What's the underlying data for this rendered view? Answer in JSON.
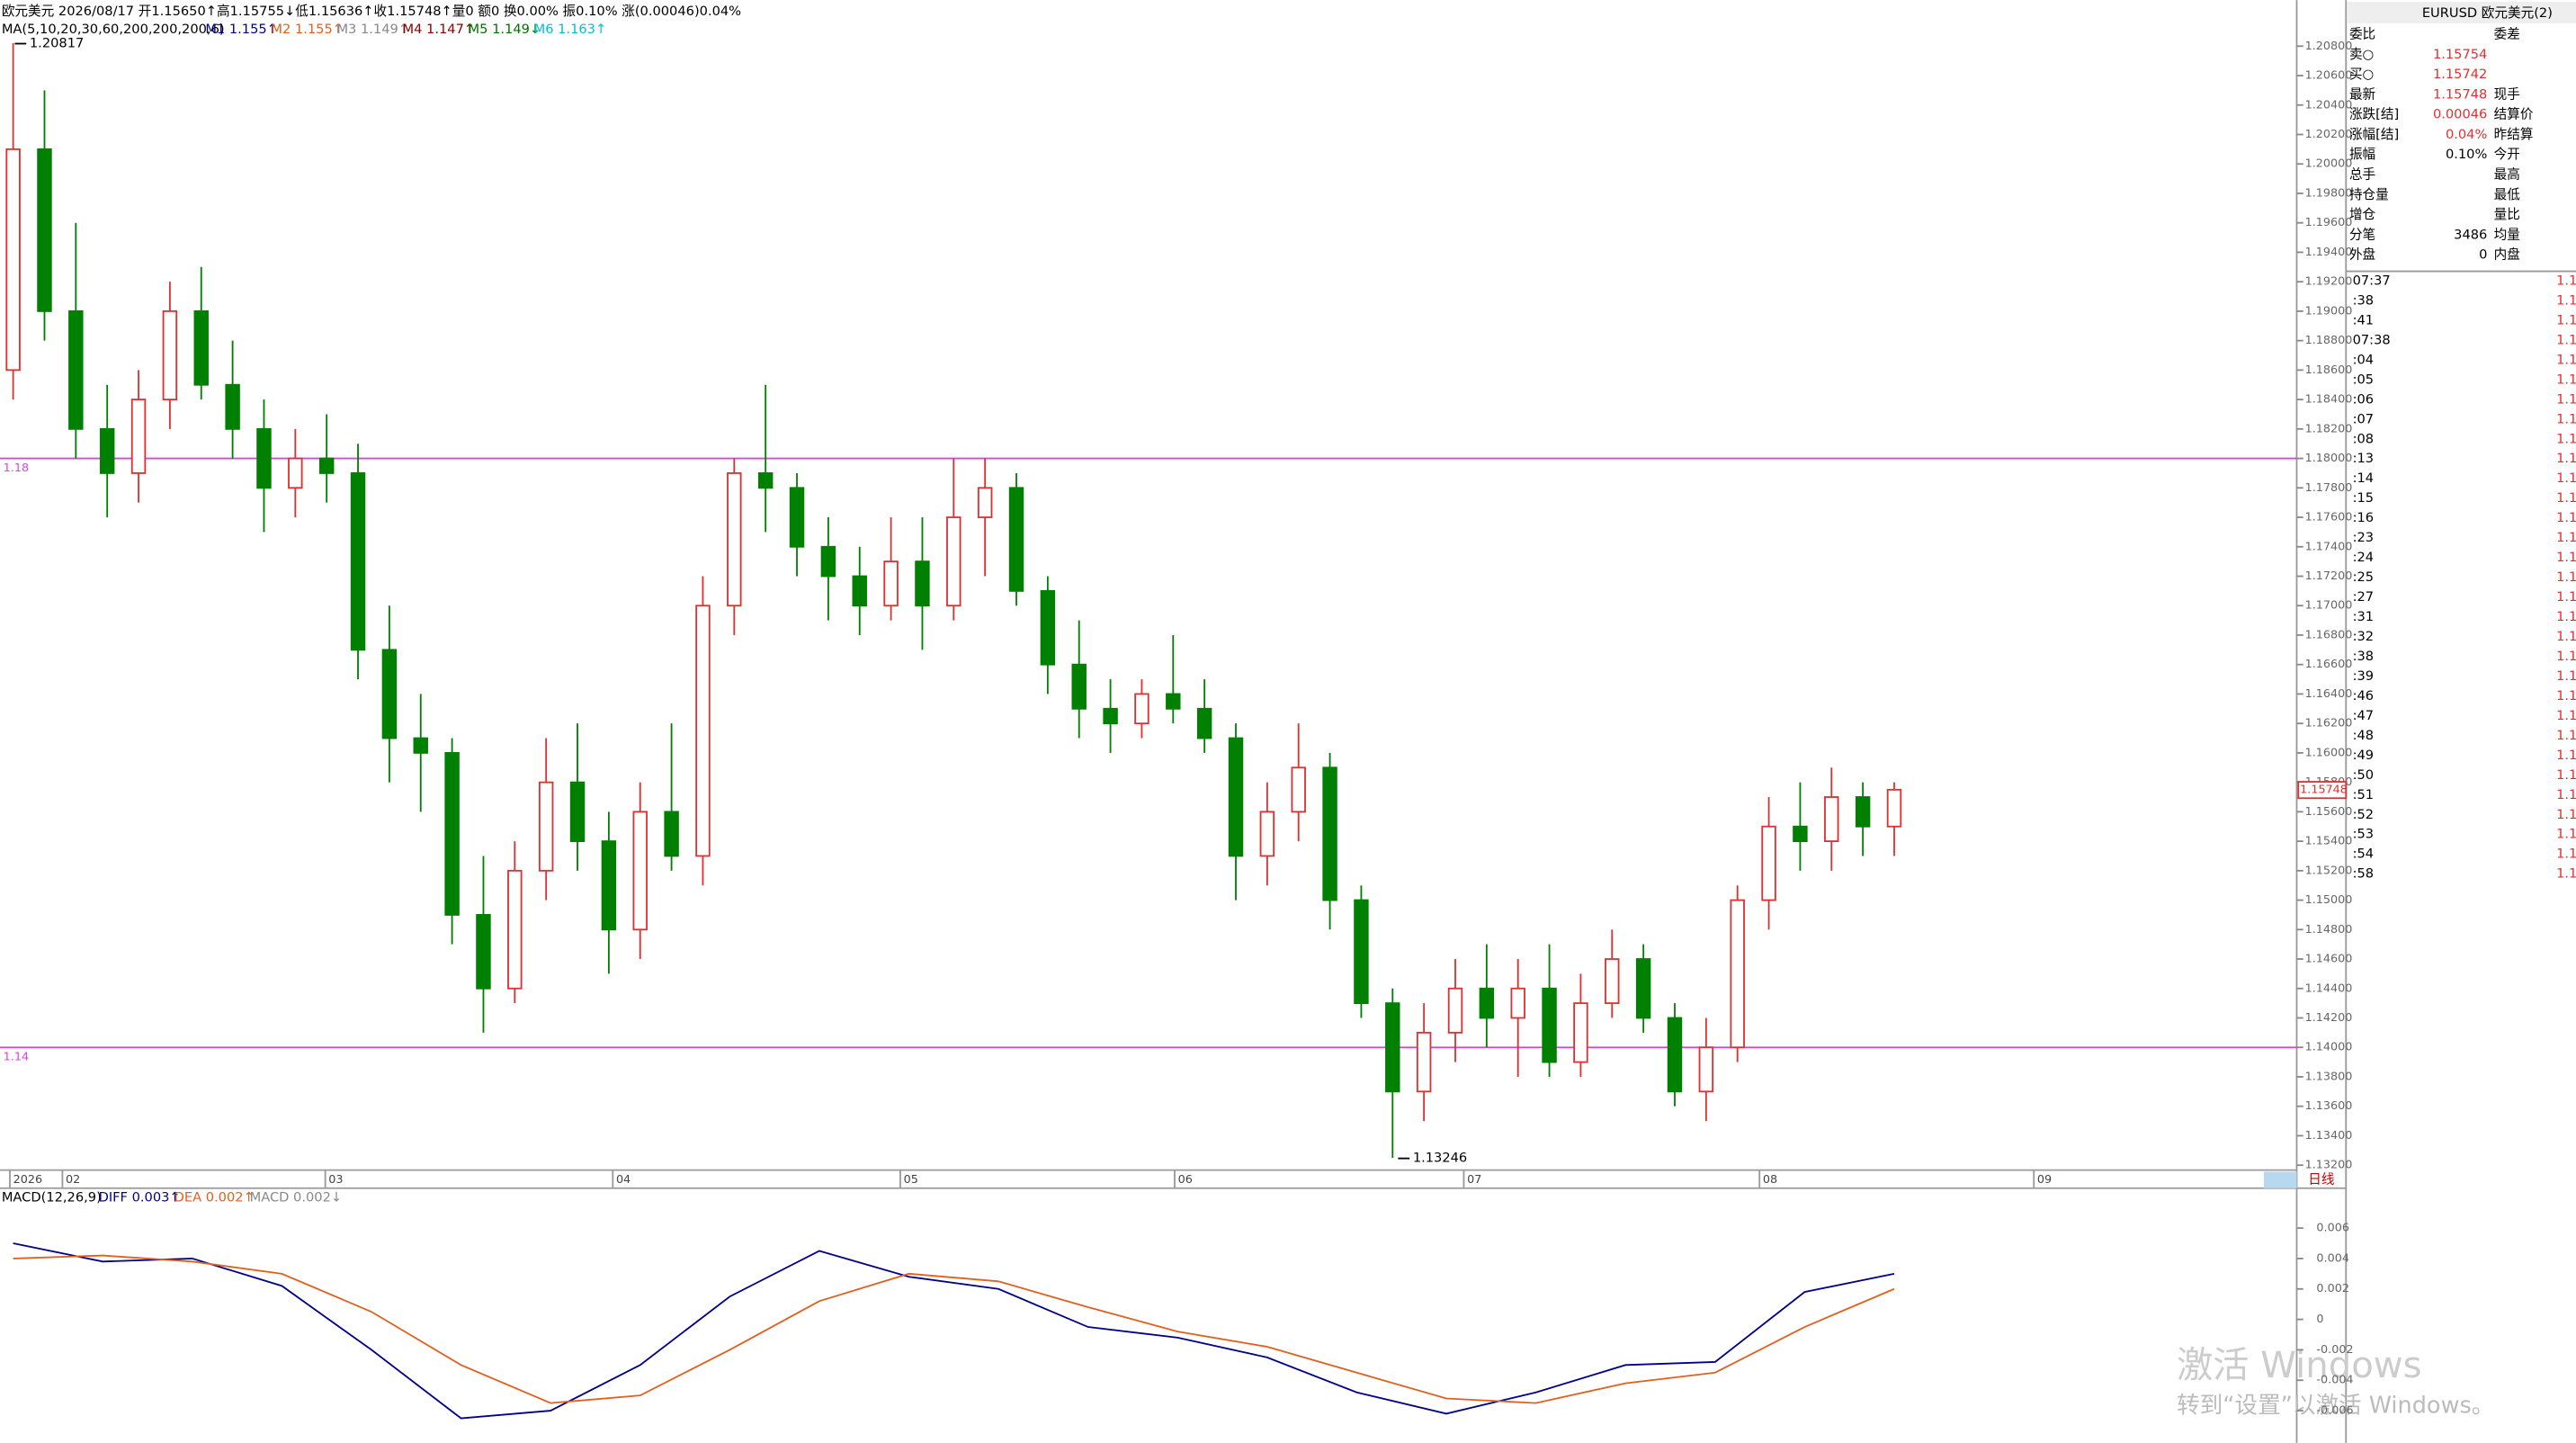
{
  "header": {
    "info": "欧元美元 2026/08/17 开1.15650↑高1.15755↓低1.15636↑收1.15748↑量0 额0 换0.00% 振0.10% 涨(0.00046)0.04%",
    "ma": "MA(5,10,20,30,60,200,200,200,6)",
    "ma_items": [
      "M1 1.155↑",
      "M2 1.155↑",
      "M3 1.149↑",
      "M4 1.147↑",
      "M5 1.149↓",
      "M6 1.163↑"
    ]
  },
  "price_chart": {
    "ylim": [
      1.132,
      1.208
    ],
    "yticks": [
      "1.20800",
      "1.20600",
      "1.20400",
      "1.20200",
      "1.20000",
      "1.19800",
      "1.19600",
      "1.19400",
      "1.19200",
      "1.19000",
      "1.18800",
      "1.18600",
      "1.18400",
      "1.18200",
      "1.18000",
      "1.17800",
      "1.17600",
      "1.17400",
      "1.17200",
      "1.17000",
      "1.16800",
      "1.16600",
      "1.16400",
      "1.16200",
      "1.16000",
      "1.15800",
      "1.15600",
      "1.15400",
      "1.15200",
      "1.15000",
      "1.14800",
      "1.14600",
      "1.14400",
      "1.14200",
      "1.14000",
      "1.13800",
      "1.13600",
      "1.13400",
      "1.13200"
    ],
    "levels": [
      1.18,
      1.14
    ],
    "high_label": "1.20817",
    "low_label": "1.13246",
    "last_label": "1.15748",
    "candles": [
      [
        1.186,
        1.2082,
        1.184,
        1.201
      ],
      [
        1.201,
        1.205,
        1.188,
        1.19
      ],
      [
        1.19,
        1.196,
        1.18,
        1.182
      ],
      [
        1.182,
        1.185,
        1.176,
        1.179
      ],
      [
        1.179,
        1.186,
        1.177,
        1.184
      ],
      [
        1.184,
        1.192,
        1.182,
        1.19
      ],
      [
        1.19,
        1.193,
        1.184,
        1.185
      ],
      [
        1.185,
        1.188,
        1.18,
        1.182
      ],
      [
        1.182,
        1.184,
        1.175,
        1.178
      ],
      [
        1.178,
        1.182,
        1.176,
        1.18
      ],
      [
        1.18,
        1.183,
        1.177,
        1.179
      ],
      [
        1.179,
        1.181,
        1.165,
        1.167
      ],
      [
        1.167,
        1.17,
        1.158,
        1.161
      ],
      [
        1.161,
        1.164,
        1.156,
        1.16
      ],
      [
        1.16,
        1.161,
        1.147,
        1.149
      ],
      [
        1.149,
        1.153,
        1.141,
        1.144
      ],
      [
        1.144,
        1.154,
        1.143,
        1.152
      ],
      [
        1.152,
        1.161,
        1.15,
        1.158
      ],
      [
        1.158,
        1.162,
        1.152,
        1.154
      ],
      [
        1.154,
        1.156,
        1.145,
        1.148
      ],
      [
        1.148,
        1.158,
        1.146,
        1.156
      ],
      [
        1.156,
        1.162,
        1.152,
        1.153
      ],
      [
        1.153,
        1.172,
        1.151,
        1.17
      ],
      [
        1.17,
        1.18,
        1.168,
        1.179
      ],
      [
        1.179,
        1.185,
        1.175,
        1.178
      ],
      [
        1.178,
        1.179,
        1.172,
        1.174
      ],
      [
        1.174,
        1.176,
        1.169,
        1.172
      ],
      [
        1.172,
        1.174,
        1.168,
        1.17
      ],
      [
        1.17,
        1.176,
        1.169,
        1.173
      ],
      [
        1.173,
        1.176,
        1.167,
        1.17
      ],
      [
        1.17,
        1.18,
        1.169,
        1.176
      ],
      [
        1.176,
        1.18,
        1.172,
        1.178
      ],
      [
        1.178,
        1.179,
        1.17,
        1.171
      ],
      [
        1.171,
        1.172,
        1.164,
        1.166
      ],
      [
        1.166,
        1.169,
        1.161,
        1.163
      ],
      [
        1.163,
        1.165,
        1.16,
        1.162
      ],
      [
        1.162,
        1.165,
        1.161,
        1.164
      ],
      [
        1.164,
        1.168,
        1.162,
        1.163
      ],
      [
        1.163,
        1.165,
        1.16,
        1.161
      ],
      [
        1.161,
        1.162,
        1.15,
        1.153
      ],
      [
        1.153,
        1.158,
        1.151,
        1.156
      ],
      [
        1.156,
        1.162,
        1.154,
        1.159
      ],
      [
        1.159,
        1.16,
        1.148,
        1.15
      ],
      [
        1.15,
        1.151,
        1.142,
        1.143
      ],
      [
        1.143,
        1.144,
        1.1325,
        1.137
      ],
      [
        1.137,
        1.143,
        1.135,
        1.141
      ],
      [
        1.141,
        1.146,
        1.139,
        1.144
      ],
      [
        1.144,
        1.147,
        1.14,
        1.142
      ],
      [
        1.142,
        1.146,
        1.138,
        1.144
      ],
      [
        1.144,
        1.147,
        1.138,
        1.139
      ],
      [
        1.139,
        1.145,
        1.138,
        1.143
      ],
      [
        1.143,
        1.148,
        1.142,
        1.146
      ],
      [
        1.146,
        1.147,
        1.141,
        1.142
      ],
      [
        1.142,
        1.143,
        1.136,
        1.137
      ],
      [
        1.137,
        1.142,
        1.135,
        1.14
      ],
      [
        1.14,
        1.151,
        1.139,
        1.15
      ],
      [
        1.15,
        1.157,
        1.148,
        1.155
      ],
      [
        1.155,
        1.158,
        1.152,
        1.154
      ],
      [
        1.154,
        1.159,
        1.152,
        1.157
      ],
      [
        1.157,
        1.158,
        1.153,
        1.155
      ],
      [
        1.155,
        1.158,
        1.153,
        1.1575
      ]
    ],
    "x_labels": [
      "2026",
      "02",
      "03",
      "04",
      "05",
      "06",
      "07",
      "08",
      "09"
    ],
    "period": "日线"
  },
  "macd_chart": {
    "label": "MACD(12,26,9)",
    "items": [
      "DIFF 0.003↑",
      "DEA 0.002↑",
      "MACD 0.002↓"
    ],
    "ylim": [
      -0.0079,
      0.0083
    ],
    "yticks": [
      0.006,
      0.004,
      0.002,
      0,
      -0.002,
      -0.004,
      -0.006
    ],
    "diff": [
      0.005,
      0.0038,
      0.004,
      0.0022,
      -0.002,
      -0.0065,
      -0.006,
      -0.003,
      0.0015,
      0.0045,
      0.0028,
      0.002,
      -0.0005,
      -0.0012,
      -0.0025,
      -0.0048,
      -0.0062,
      -0.0048,
      -0.003,
      -0.0028,
      0.0018,
      0.003
    ],
    "dea": [
      0.004,
      0.0042,
      0.0038,
      0.003,
      0.0005,
      -0.003,
      -0.0055,
      -0.005,
      -0.002,
      0.0012,
      0.003,
      0.0025,
      0.0008,
      -0.0008,
      -0.0018,
      -0.0035,
      -0.0052,
      -0.0055,
      -0.0042,
      -0.0035,
      -0.0005,
      0.002
    ]
  },
  "quote": {
    "title": "EURUSD 欧元美元(2)",
    "rows": [
      [
        "委比",
        "",
        "委差"
      ],
      [
        "卖○",
        "1.15754",
        ""
      ],
      [
        "买○",
        "1.15742",
        ""
      ],
      [
        "最新",
        "1.15748",
        "现手"
      ],
      [
        "涨跌[结]",
        "0.00046",
        "结算价"
      ],
      [
        "涨幅[结]",
        "0.04%",
        "昨结算"
      ],
      [
        "振幅",
        "0.10%",
        "今开"
      ],
      [
        "总手",
        "",
        "最高"
      ],
      [
        "持仓量",
        "",
        "最低"
      ],
      [
        "增仓",
        "",
        "量比"
      ],
      [
        "分笔",
        "3486",
        "均量"
      ],
      [
        "外盘",
        "0",
        "内盘"
      ]
    ],
    "ticks": [
      "07:37",
      ":38",
      ":41",
      "07:38",
      ":04",
      ":05",
      ":06",
      ":07",
      ":08",
      ":13",
      ":14",
      ":15",
      ":16",
      ":23",
      ":24",
      ":25",
      ":27",
      ":31",
      ":32",
      ":38",
      ":39",
      ":46",
      ":47",
      ":48",
      ":49",
      ":50",
      ":51",
      ":52",
      ":53",
      ":54",
      ":58"
    ],
    "tick_price": "1.1"
  },
  "watermark": {
    "line1": "激活 Windows",
    "line2": "转到“设置”以激活 Windows。"
  }
}
